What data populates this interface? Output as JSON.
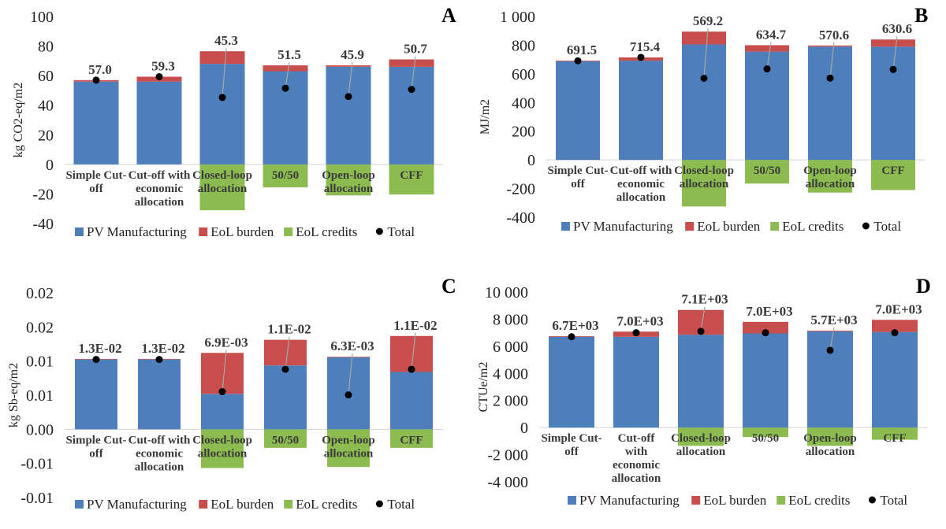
{
  "colors": {
    "manufacturing": "#4e7fbd",
    "burden": "#c74e4c",
    "credits": "#8cbc50",
    "total": "#000000",
    "leader": "#a6a6a6"
  },
  "legend": [
    "PV Manufacturing",
    "EoL burden",
    "EoL credits",
    "Total"
  ],
  "chart_data": [
    {
      "type": "bar",
      "panel": "A",
      "ylabel": "kg CO2-eq/m2",
      "ylim": [
        -40,
        100
      ],
      "ytick_values": [
        -40,
        -20,
        0,
        20,
        40,
        60,
        80,
        100
      ],
      "ytick_labels": [
        "-40",
        "-20",
        "0",
        "20",
        "40",
        "60",
        "80",
        "100"
      ],
      "categories": [
        [
          "Simple Cut-",
          "off"
        ],
        [
          "Cut-off with",
          "economic",
          "allocation"
        ],
        [
          "Closed-loop",
          "allocation"
        ],
        [
          "50/50"
        ],
        [
          "Open-loop",
          "allocation"
        ],
        [
          "CFF"
        ]
      ],
      "series": [
        {
          "name": "PV Manufacturing",
          "values": [
            56,
            56,
            68,
            63,
            66,
            66
          ]
        },
        {
          "name": "EoL burden",
          "values": [
            1,
            3.3,
            8.5,
            4,
            1,
            5
          ]
        },
        {
          "name": "EoL credits",
          "values": [
            0,
            0,
            -31,
            -15.5,
            -21,
            -20.3
          ]
        },
        {
          "name": "Total",
          "values": [
            57.0,
            59.3,
            45.3,
            51.5,
            45.9,
            50.7
          ]
        }
      ],
      "data_labels": [
        "57.0",
        "59.3",
        "45.3",
        "51.5",
        "45.9",
        "50.7"
      ]
    },
    {
      "type": "bar",
      "panel": "B",
      "ylabel": "MJ/m2",
      "ylim": [
        -400,
        1000
      ],
      "ytick_values": [
        -400,
        -200,
        0,
        200,
        400,
        600,
        800,
        1000
      ],
      "ytick_labels": [
        "-400",
        "-200",
        "0",
        "200",
        "400",
        "600",
        "800",
        "1 000"
      ],
      "categories": [
        [
          "Simple Cut-",
          "off"
        ],
        [
          "Cut-off with",
          "economic",
          "allocation"
        ],
        [
          "Closed-loop",
          "allocation"
        ],
        [
          "50/50"
        ],
        [
          "Open-loop",
          "allocation"
        ],
        [
          "CFF"
        ]
      ],
      "series": [
        {
          "name": "PV Manufacturing",
          "values": [
            688,
            692,
            805,
            755,
            790,
            790
          ]
        },
        {
          "name": "EoL burden",
          "values": [
            5,
            23,
            90,
            45,
            8,
            50
          ]
        },
        {
          "name": "EoL credits",
          "values": [
            0,
            0,
            -325,
            -165,
            -228,
            -210
          ]
        },
        {
          "name": "Total",
          "values": [
            691.5,
            715.4,
            569.2,
            634.7,
            570.6,
            630.6
          ]
        }
      ],
      "data_labels": [
        "691.5",
        "715.4",
        "569.2",
        "634.7",
        "570.6",
        "630.6"
      ]
    },
    {
      "type": "bar",
      "panel": "C",
      "ylabel": "kg Sb-eq/m2",
      "ylim": [
        -0.0125,
        0.025
      ],
      "ytick_values": [
        -0.0125,
        -0.00625,
        0,
        0.00625,
        0.0125,
        0.01875,
        0.025
      ],
      "ytick_labels": [
        "-0.01",
        "-0.01",
        "0.00",
        "0.01",
        "0.01",
        "0.02",
        "0.02"
      ],
      "categories": [
        [
          "Simple Cut-",
          "off"
        ],
        [
          "Cut-off with",
          "economic",
          "allocation"
        ],
        [
          "Closed-loop",
          "allocation"
        ],
        [
          "50/50"
        ],
        [
          "Open-loop",
          "allocation"
        ],
        [
          "CFF"
        ]
      ],
      "series": [
        {
          "name": "PV Manufacturing",
          "values": [
            0.0128,
            0.0128,
            0.0065,
            0.0117,
            0.0132,
            0.0105
          ]
        },
        {
          "name": "EoL burden",
          "values": [
            0.0001,
            0.0001,
            0.0075,
            0.0047,
            0.0001,
            0.0066
          ]
        },
        {
          "name": "EoL credits",
          "values": [
            0,
            0,
            -0.0071,
            -0.0034,
            -0.0069,
            -0.0034
          ]
        },
        {
          "name": "Total",
          "values": [
            0.0128,
            0.0128,
            0.0069,
            0.011,
            0.0063,
            0.011
          ]
        }
      ],
      "data_labels": [
        "1.3E-02",
        "1.3E-02",
        "6.9E-03",
        "1.1E-02",
        "6.3E-03",
        "1.1E-02"
      ]
    },
    {
      "type": "bar",
      "panel": "D",
      "ylabel": "CTUe/m2",
      "ylim": [
        -4000,
        10000
      ],
      "ytick_values": [
        -4000,
        -2000,
        0,
        2000,
        4000,
        6000,
        8000,
        10000
      ],
      "ytick_labels": [
        "-4 000",
        "-2 000",
        "0",
        "2 000",
        "4 000",
        "6 000",
        "8 000",
        "10 000"
      ],
      "categories": [
        [
          "Simple Cut-",
          "off"
        ],
        [
          "Cut-off",
          "with",
          "economic",
          "allocation"
        ],
        [
          "Closed-loop",
          "allocation"
        ],
        [
          "50/50"
        ],
        [
          "Open-loop",
          "allocation"
        ],
        [
          "CFF"
        ]
      ],
      "series": [
        {
          "name": "PV Manufacturing",
          "values": [
            6700,
            6700,
            6850,
            6950,
            7100,
            7050
          ]
        },
        {
          "name": "EoL burden",
          "values": [
            50,
            380,
            1830,
            850,
            50,
            900
          ]
        },
        {
          "name": "EoL credits",
          "values": [
            0,
            0,
            -1350,
            -700,
            -1350,
            -900
          ]
        },
        {
          "name": "Total",
          "values": [
            6700,
            7000,
            7100,
            7000,
            5700,
            7000
          ]
        }
      ],
      "data_labels": [
        "6.7E+03",
        "7.0E+03",
        "7.1E+03",
        "7.0E+03",
        "5.7E+03",
        "7.0E+03"
      ]
    }
  ]
}
